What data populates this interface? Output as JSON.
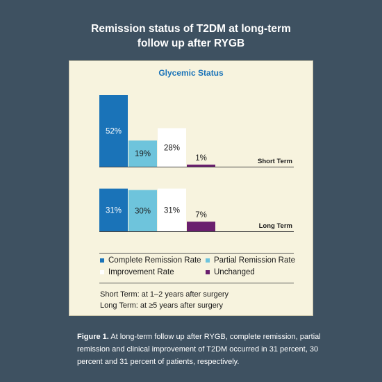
{
  "title_line1": "Remission status of T2DM at long-term",
  "title_line2": "follow up after RYGB",
  "panel_title": "Glycemic Status",
  "chart_data": {
    "type": "bar",
    "title": "Glycemic Status",
    "categories": [
      "Complete Remission Rate",
      "Partial Remission Rate",
      "Improvement Rate",
      "Unchanged"
    ],
    "colors": [
      "#1a73b8",
      "#6ec4dc",
      "#ffffff",
      "#6a1f6e"
    ],
    "groups": [
      {
        "name": "Short Term",
        "values": [
          52,
          19,
          28,
          1
        ],
        "labels": [
          "52%",
          "19%",
          "28%",
          "1%"
        ]
      },
      {
        "name": "Long Term",
        "values": [
          31,
          30,
          31,
          7
        ],
        "labels": [
          "31%",
          "30%",
          "31%",
          "7%"
        ]
      }
    ],
    "ylim": [
      0,
      52
    ],
    "legend_position": "bottom"
  },
  "notes": {
    "short": "Short Term: at 1–2 years after surgery",
    "long": "Long Term: at ≥5 years after surgery"
  },
  "caption": {
    "label": "Figure 1.",
    "text": " At long-term follow up after RYGB, complete remission, partial remission and clinical improvement of T2DM occurred in 31 percent, 30 percent and 31 percent of patients, respectively."
  }
}
